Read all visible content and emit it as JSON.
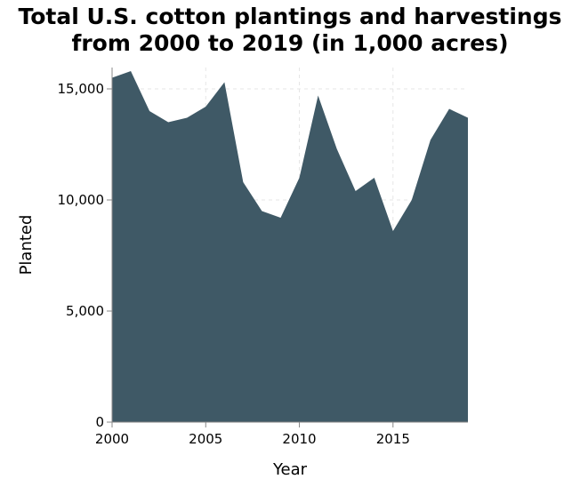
{
  "chart_data": {
    "type": "area",
    "title_line1": "Total U.S. cotton plantings and harvestings",
    "title_line2": "from 2000 to 2019 (in 1,000 acres)",
    "xlabel": "Year",
    "ylabel": "Planted",
    "xlim": [
      2000,
      2019
    ],
    "ylim": [
      0,
      15000
    ],
    "x_ticks": [
      2000,
      2005,
      2010,
      2015
    ],
    "x_tick_labels": [
      "2000",
      "2005",
      "2010",
      "2015"
    ],
    "y_ticks": [
      0,
      5000,
      10000,
      15000
    ],
    "y_tick_labels": [
      "0",
      "5,000",
      "10,000",
      "15,000"
    ],
    "grid": true,
    "fill_color": "#3f5966",
    "series": [
      {
        "x": [
          2000,
          2001,
          2002,
          2003,
          2004,
          2005,
          2006,
          2007,
          2008,
          2009,
          2010,
          2011,
          2012,
          2013,
          2014,
          2015,
          2016,
          2017,
          2018,
          2019
        ],
        "values": [
          15500,
          15800,
          14000,
          13500,
          13700,
          14200,
          15300,
          10800,
          9500,
          9200,
          11000,
          14700,
          12300,
          10400,
          11000,
          8600,
          10000,
          12700,
          14100,
          13700
        ]
      }
    ]
  }
}
